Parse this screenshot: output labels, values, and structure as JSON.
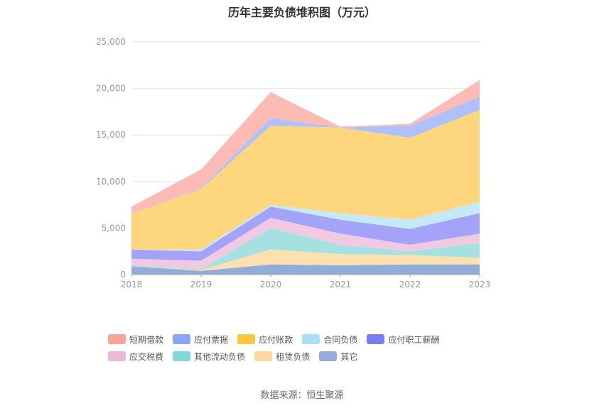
{
  "title": "历年主要负债堆积图（万元）",
  "source_text": "数据来源：恒生聚源",
  "chart_data": {
    "type": "area",
    "stacked": true,
    "title": "历年主要负债堆积图（万元）",
    "x": [
      "2018",
      "2019",
      "2020",
      "2021",
      "2022",
      "2023"
    ],
    "yticks": [
      "0",
      "5,000",
      "10,000",
      "15,000",
      "20,000",
      "25,000"
    ],
    "ylim": [
      0,
      25000
    ],
    "grid": true,
    "legend_position": "bottom",
    "series": [
      {
        "name": "其它",
        "color": "#91acd8",
        "values": [
          900,
          400,
          1100,
          1000,
          1100,
          1100
        ]
      },
      {
        "name": "租赁负债",
        "color": "#fde0ad",
        "values": [
          0,
          100,
          1600,
          1200,
          1000,
          700
        ]
      },
      {
        "name": "其他流动负债",
        "color": "#a6e1e2",
        "values": [
          100,
          100,
          2300,
          1000,
          400,
          1600
        ]
      },
      {
        "name": "应交税费",
        "color": "#f2c9e2",
        "values": [
          700,
          900,
          1100,
          1200,
          700,
          1000
        ]
      },
      {
        "name": "应付职工薪酬",
        "color": "#a3a3fa",
        "values": [
          1000,
          1000,
          1200,
          1500,
          1700,
          2200
        ]
      },
      {
        "name": "合同负债",
        "color": "#c4e9f8",
        "values": [
          0,
          200,
          200,
          700,
          1000,
          1200
        ]
      },
      {
        "name": "应付账款",
        "color": "#fed67e",
        "values": [
          3800,
          6500,
          8500,
          9200,
          8800,
          9900
        ]
      },
      {
        "name": "应付票据",
        "color": "#aec1fa",
        "values": [
          0,
          100,
          800,
          0,
          1300,
          1400
        ]
      },
      {
        "name": "短期借款",
        "color": "#fcbcb5",
        "values": [
          800,
          2000,
          2800,
          100,
          200,
          1800
        ]
      }
    ]
  },
  "legend": [
    {
      "label": "短期借款",
      "color": "#f8a49a"
    },
    {
      "label": "应付票据",
      "color": "#8aa5f7"
    },
    {
      "label": "应付账款",
      "color": "#fcc63d"
    },
    {
      "label": "合同负债",
      "color": "#a7dff6"
    },
    {
      "label": "应付职工薪酬",
      "color": "#7b7bf3"
    },
    {
      "label": "应交税费",
      "color": "#e9b9d8"
    },
    {
      "label": "其他流动负债",
      "color": "#85d6d7"
    },
    {
      "label": "租赁负债",
      "color": "#fdd9a1"
    },
    {
      "label": "其它",
      "color": "#93aedb"
    }
  ]
}
